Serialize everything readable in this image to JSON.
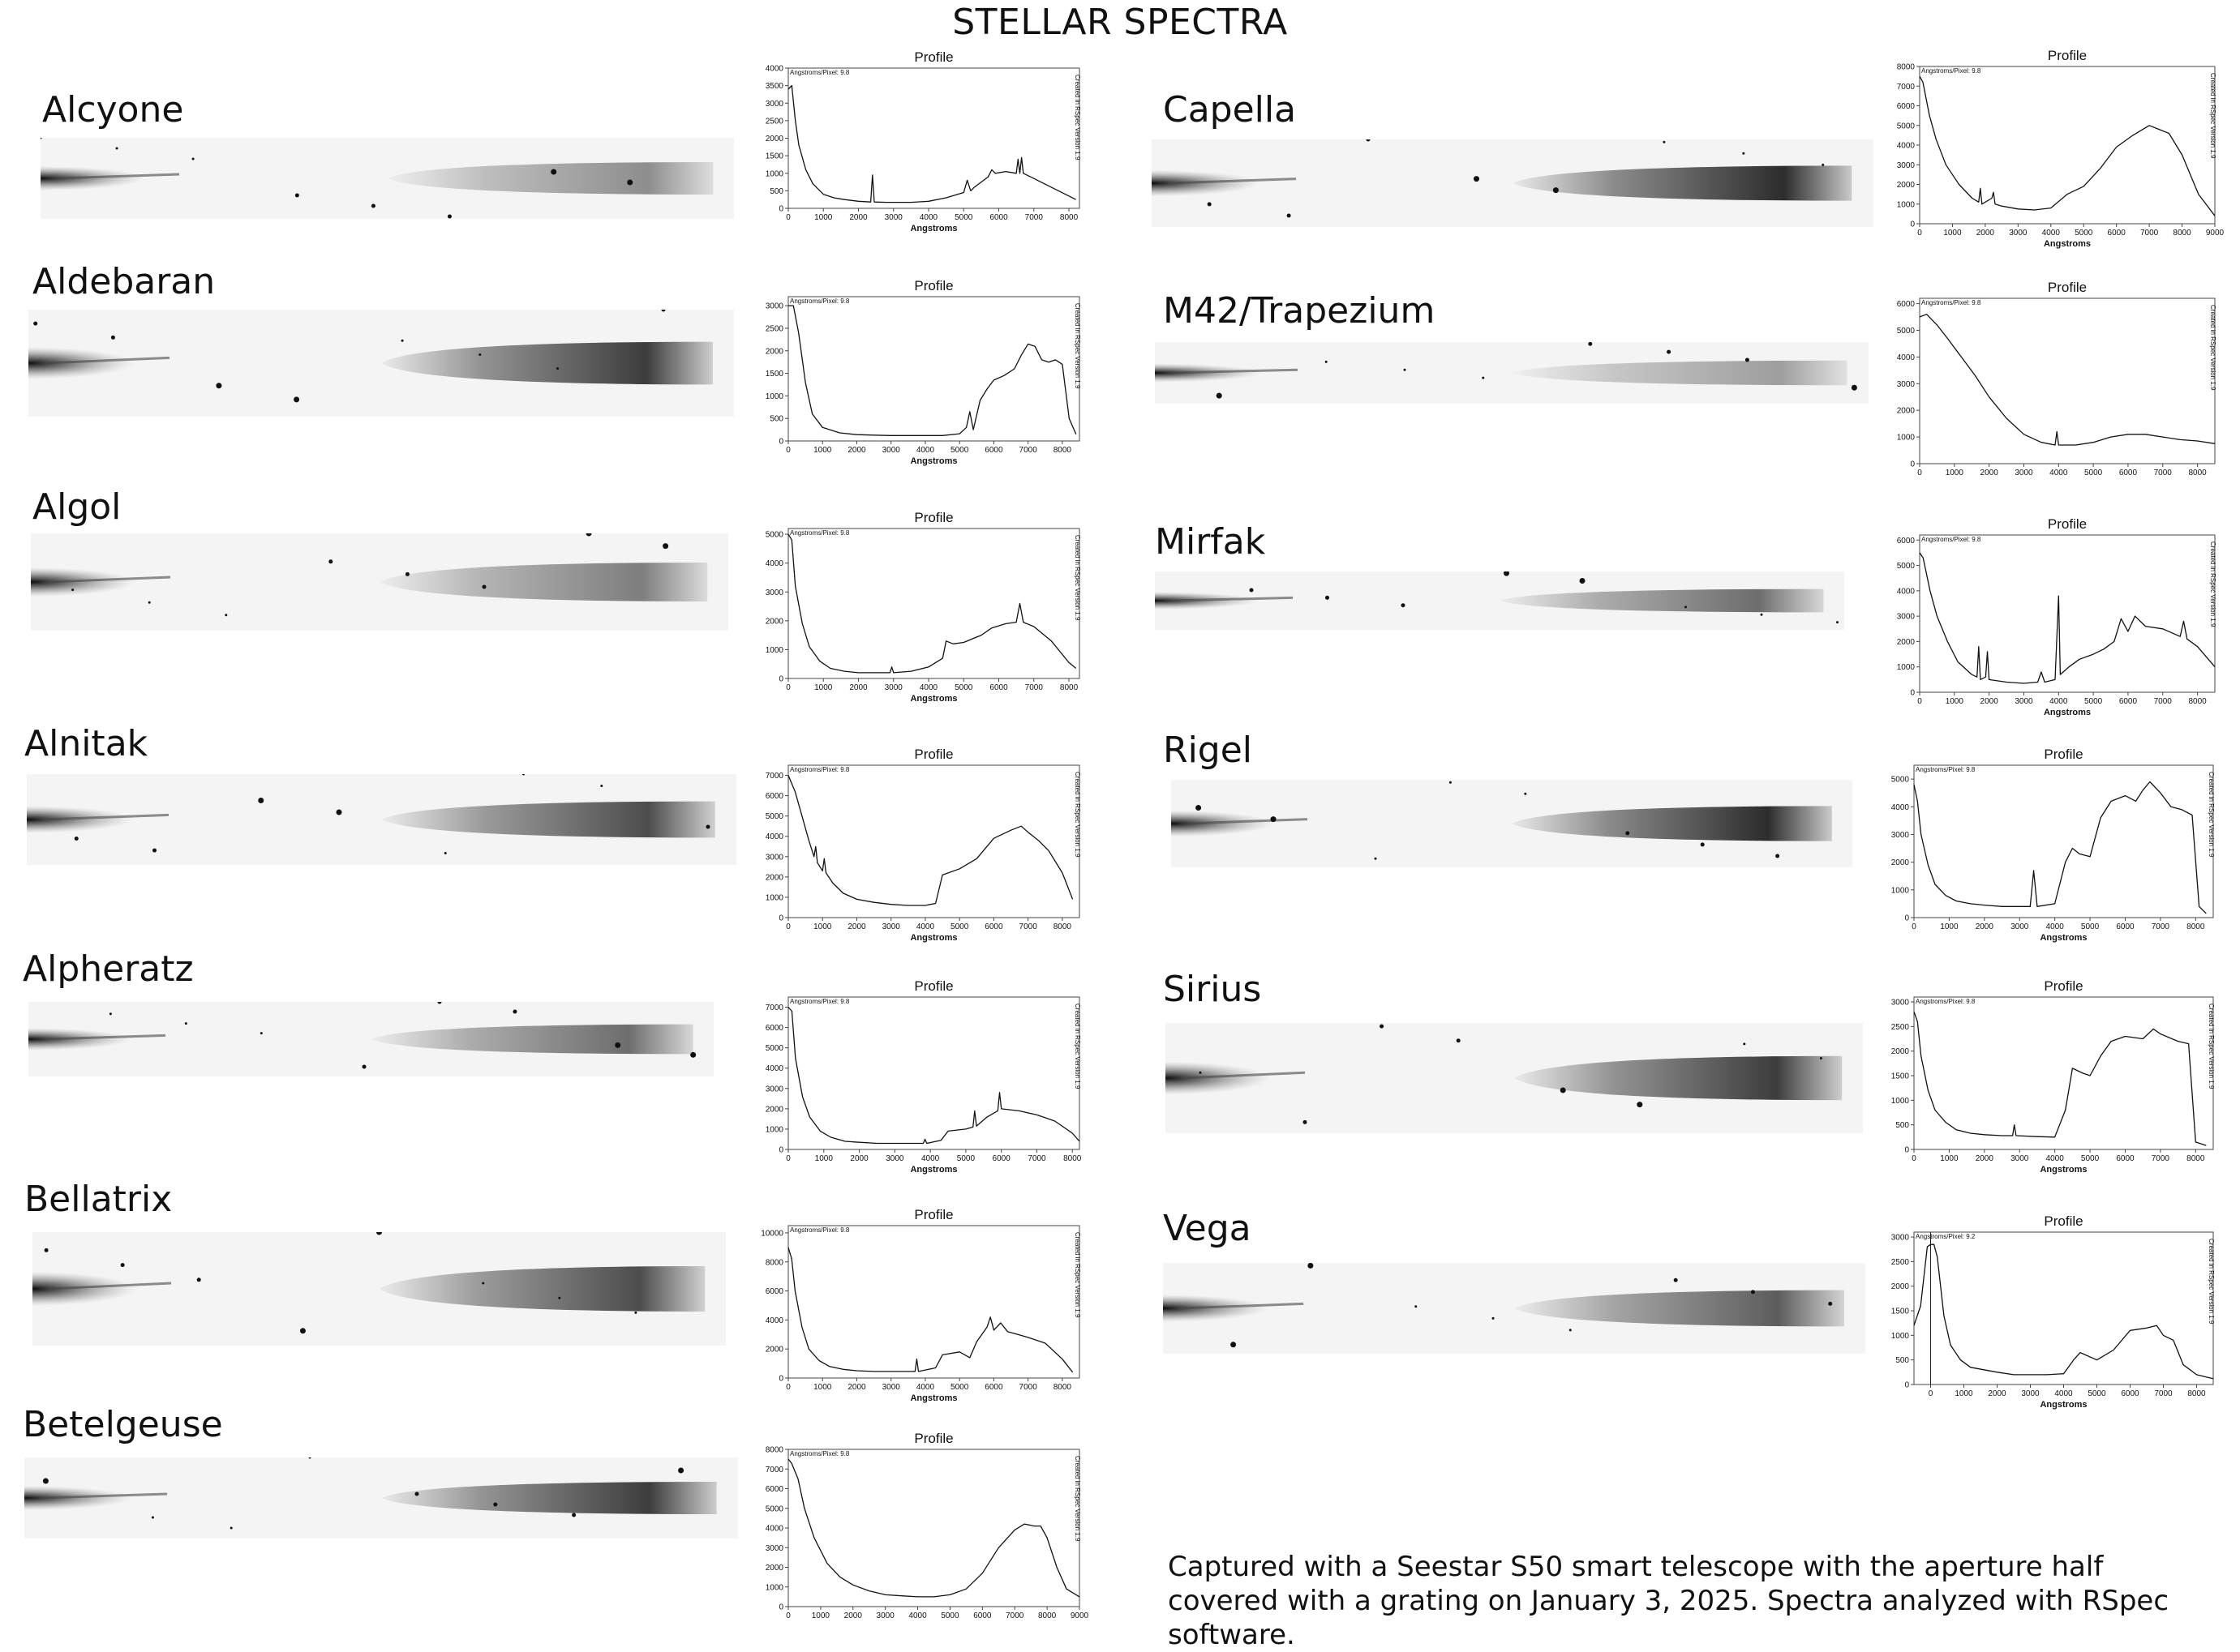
{
  "page": {
    "title": "STELLAR SPECTRA",
    "caption": "Captured with a Seestar S50 smart telescope with the aperture half covered with a grating on January 3, 2025. Spectra analyzed with RSpec software."
  },
  "chart_data": [
    {
      "type": "line",
      "star": "Alcyone",
      "title": "Profile",
      "xlabel": "Angstroms",
      "ylabel": "",
      "header": "Angstroms/Pixel: 9.8",
      "side_note": "Created in RSpec Version 1.9",
      "xlim": [
        0,
        8300
      ],
      "ylim": [
        0,
        4000
      ],
      "xticks": [
        0,
        1000,
        2000,
        3000,
        4000,
        5000,
        6000,
        7000,
        8000
      ],
      "yticks": [
        0,
        500,
        1000,
        1500,
        2000,
        2500,
        3000,
        3500,
        4000
      ],
      "x": [
        0,
        100,
        200,
        300,
        500,
        700,
        1000,
        1300,
        1600,
        2000,
        2350,
        2400,
        2450,
        2800,
        3500,
        4000,
        4500,
        5000,
        5100,
        5200,
        5300,
        5500,
        5700,
        5800,
        5900,
        6200,
        6500,
        6550,
        6600,
        6650,
        6700,
        6800,
        7000,
        7300,
        7600,
        7900,
        8200
      ],
      "y": [
        3400,
        3500,
        2500,
        1800,
        1100,
        700,
        400,
        300,
        250,
        200,
        180,
        950,
        180,
        170,
        170,
        200,
        300,
        450,
        800,
        500,
        600,
        750,
        900,
        1100,
        1000,
        1050,
        1000,
        1400,
        1000,
        1450,
        1000,
        950,
        850,
        700,
        550,
        400,
        250
      ]
    },
    {
      "type": "line",
      "star": "Aldebaran",
      "title": "Profile",
      "xlabel": "Angstroms",
      "ylabel": "",
      "header": "Angstroms/Pixel: 9.8",
      "side_note": "Created in RSpec Version 1.9",
      "xlim": [
        0,
        8500
      ],
      "ylim": [
        0,
        3200
      ],
      "xticks": [
        0,
        1000,
        2000,
        3000,
        4000,
        5000,
        6000,
        7000,
        8000
      ],
      "yticks": [
        0,
        500,
        1000,
        1500,
        2000,
        2500,
        3000
      ],
      "x": [
        0,
        150,
        300,
        500,
        700,
        1000,
        1500,
        2000,
        2500,
        3000,
        3500,
        4000,
        4500,
        5000,
        5200,
        5300,
        5400,
        5600,
        5800,
        6000,
        6300,
        6600,
        6800,
        7000,
        7200,
        7400,
        7600,
        7800,
        8000,
        8200,
        8400
      ],
      "y": [
        3000,
        3000,
        2400,
        1300,
        600,
        300,
        180,
        140,
        130,
        120,
        120,
        120,
        120,
        160,
        300,
        650,
        250,
        900,
        1150,
        1350,
        1450,
        1600,
        1900,
        2150,
        2100,
        1800,
        1750,
        1800,
        1700,
        500,
        150
      ]
    },
    {
      "type": "line",
      "star": "Algol",
      "title": "Profile",
      "xlabel": "Angstroms",
      "ylabel": "",
      "header": "Angstroms/Pixel: 9.8",
      "side_note": "Created in RSpec Version 1.9",
      "xlim": [
        0,
        8300
      ],
      "ylim": [
        0,
        5200
      ],
      "xticks": [
        0,
        1000,
        2000,
        3000,
        4000,
        5000,
        6000,
        7000,
        8000
      ],
      "yticks": [
        0,
        1000,
        2000,
        3000,
        4000,
        5000
      ],
      "x": [
        0,
        100,
        200,
        400,
        600,
        900,
        1200,
        1600,
        2000,
        2500,
        2900,
        2950,
        3000,
        3500,
        4000,
        4400,
        4500,
        4700,
        5000,
        5500,
        5800,
        6200,
        6500,
        6600,
        6700,
        7000,
        7500,
        8000,
        8200
      ],
      "y": [
        5000,
        4800,
        3200,
        1900,
        1100,
        600,
        350,
        250,
        200,
        200,
        200,
        400,
        200,
        250,
        400,
        700,
        1300,
        1200,
        1250,
        1500,
        1750,
        1900,
        1950,
        2600,
        1950,
        1800,
        1300,
        550,
        350
      ]
    },
    {
      "type": "line",
      "star": "Alnitak",
      "title": "Profile",
      "xlabel": "Angstroms",
      "ylabel": "",
      "header": "Angstroms/Pixel: 9.8",
      "side_note": "Created in RSpec Version 1.9",
      "xlim": [
        0,
        8500
      ],
      "ylim": [
        0,
        7500
      ],
      "xticks": [
        0,
        1000,
        2000,
        3000,
        4000,
        5000,
        6000,
        7000,
        8000
      ],
      "yticks": [
        0,
        1000,
        2000,
        3000,
        4000,
        5000,
        6000,
        7000
      ],
      "x": [
        0,
        200,
        400,
        600,
        750,
        800,
        850,
        1000,
        1050,
        1100,
        1300,
        1600,
        2000,
        2500,
        3000,
        3500,
        4000,
        4300,
        4500,
        5000,
        5500,
        6000,
        6500,
        6800,
        7000,
        7300,
        7600,
        8000,
        8300
      ],
      "y": [
        7000,
        6200,
        5000,
        3800,
        3000,
        3500,
        2700,
        2300,
        2900,
        2200,
        1700,
        1200,
        900,
        750,
        650,
        600,
        600,
        700,
        2100,
        2400,
        2900,
        3900,
        4300,
        4500,
        4200,
        3800,
        3300,
        2200,
        900
      ]
    },
    {
      "type": "line",
      "star": "Alpheratz",
      "title": "Profile",
      "xlabel": "Angstroms",
      "ylabel": "",
      "header": "Angstroms/Pixel: 9.8",
      "side_note": "Created in RSpec Version 1.9",
      "xlim": [
        0,
        8200
      ],
      "ylim": [
        0,
        7500
      ],
      "xticks": [
        0,
        1000,
        2000,
        3000,
        4000,
        5000,
        6000,
        7000,
        8000
      ],
      "yticks": [
        0,
        1000,
        2000,
        3000,
        4000,
        5000,
        6000,
        7000
      ],
      "x": [
        0,
        100,
        200,
        400,
        600,
        900,
        1200,
        1600,
        2000,
        2500,
        3000,
        3500,
        3800,
        3850,
        3900,
        4300,
        4500,
        5000,
        5200,
        5250,
        5300,
        5600,
        5900,
        5950,
        6000,
        6500,
        7000,
        7500,
        8000,
        8200
      ],
      "y": [
        7000,
        6800,
        4500,
        2600,
        1600,
        900,
        600,
        400,
        350,
        300,
        300,
        300,
        300,
        500,
        300,
        450,
        900,
        1000,
        1100,
        1900,
        1150,
        1600,
        1900,
        2800,
        2000,
        1900,
        1700,
        1400,
        800,
        400
      ]
    },
    {
      "type": "line",
      "star": "Bellatrix",
      "title": "Profile",
      "xlabel": "Angstroms",
      "ylabel": "",
      "header": "Angstroms/Pixel: 9.8",
      "side_note": "Created in RSpec Version 1.9",
      "xlim": [
        0,
        8500
      ],
      "ylim": [
        0,
        10500
      ],
      "xticks": [
        0,
        1000,
        2000,
        3000,
        4000,
        5000,
        6000,
        7000,
        8000
      ],
      "yticks": [
        0,
        2000,
        4000,
        6000,
        8000,
        10000
      ],
      "x": [
        0,
        100,
        200,
        400,
        600,
        900,
        1200,
        1600,
        2000,
        2500,
        3000,
        3500,
        3700,
        3750,
        3800,
        4300,
        4500,
        5000,
        5300,
        5500,
        5800,
        5900,
        6000,
        6200,
        6400,
        6700,
        7000,
        7500,
        8000,
        8300
      ],
      "y": [
        9000,
        8200,
        6000,
        3500,
        2000,
        1200,
        800,
        600,
        500,
        450,
        450,
        450,
        450,
        1300,
        450,
        700,
        1600,
        1800,
        1400,
        2500,
        3500,
        4200,
        3300,
        3800,
        3200,
        3000,
        2800,
        2400,
        1300,
        400
      ]
    },
    {
      "type": "line",
      "star": "Betelgeuse",
      "title": "Profile",
      "xlabel": "",
      "ylabel": "",
      "header": "Angstroms/Pixel: 9.8",
      "side_note": "Created in RSpec Version 1.9",
      "xlim": [
        0,
        9000
      ],
      "ylim": [
        0,
        8000
      ],
      "xticks": [
        0,
        1000,
        2000,
        3000,
        4000,
        5000,
        6000,
        7000,
        8000,
        9000
      ],
      "yticks": [
        0,
        1000,
        2000,
        3000,
        4000,
        5000,
        6000,
        7000,
        8000
      ],
      "x": [
        0,
        100,
        300,
        500,
        800,
        1200,
        1600,
        2000,
        2500,
        3000,
        3500,
        4000,
        4500,
        5000,
        5500,
        6000,
        6500,
        7000,
        7300,
        7600,
        7800,
        8000,
        8300,
        8600,
        9000
      ],
      "y": [
        7500,
        7300,
        6500,
        5000,
        3500,
        2200,
        1500,
        1100,
        800,
        600,
        550,
        500,
        500,
        600,
        900,
        1700,
        3000,
        3900,
        4200,
        4100,
        4100,
        3500,
        2000,
        900,
        500
      ]
    },
    {
      "type": "line",
      "star": "Capella",
      "title": "Profile",
      "xlabel": "Angstroms",
      "ylabel": "",
      "header": "Angstroms/Pixel: 9.8",
      "side_note": "Created in RSpec Version 1.9",
      "xlim": [
        0,
        9000
      ],
      "ylim": [
        0,
        8000
      ],
      "xticks": [
        0,
        1000,
        2000,
        3000,
        4000,
        5000,
        6000,
        7000,
        8000,
        9000
      ],
      "yticks": [
        0,
        1000,
        2000,
        3000,
        4000,
        5000,
        6000,
        7000,
        8000
      ],
      "x": [
        0,
        100,
        300,
        500,
        800,
        1200,
        1600,
        1800,
        1850,
        1900,
        2200,
        2250,
        2300,
        2500,
        3000,
        3500,
        4000,
        4500,
        5000,
        5500,
        6000,
        6500,
        7000,
        7300,
        7600,
        8000,
        8500,
        9000
      ],
      "y": [
        7500,
        7200,
        5500,
        4300,
        3000,
        2000,
        1300,
        1100,
        1800,
        1000,
        1300,
        1600,
        1000,
        900,
        750,
        700,
        800,
        1500,
        1900,
        2800,
        3900,
        4500,
        5000,
        4800,
        4600,
        3500,
        1500,
        400
      ]
    },
    {
      "type": "line",
      "star": "M42/Trapezium",
      "title": "Profile",
      "xlabel": "",
      "ylabel": "",
      "header": "Angstroms/Pixel: 9.8",
      "side_note": "Created in RSpec Version 1.9",
      "xlim": [
        0,
        8500
      ],
      "ylim": [
        0,
        6200
      ],
      "xticks": [
        0,
        1000,
        2000,
        3000,
        4000,
        5000,
        6000,
        7000,
        8000
      ],
      "yticks": [
        0,
        1000,
        2000,
        3000,
        4000,
        5000,
        6000
      ],
      "x": [
        0,
        200,
        500,
        800,
        1200,
        1600,
        2000,
        2500,
        3000,
        3500,
        3900,
        3950,
        4000,
        4500,
        5000,
        5500,
        6000,
        6500,
        7000,
        7500,
        8000,
        8500
      ],
      "y": [
        5500,
        5600,
        5200,
        4700,
        4000,
        3300,
        2500,
        1700,
        1100,
        800,
        700,
        1200,
        700,
        700,
        800,
        1000,
        1100,
        1100,
        1000,
        900,
        850,
        750
      ]
    },
    {
      "type": "line",
      "star": "Mirfak",
      "title": "Profile",
      "xlabel": "Angstroms",
      "ylabel": "",
      "header": "Angstroms/Pixel: 9.8",
      "side_note": "Created in RSpec Version 1.9",
      "xlim": [
        0,
        8500
      ],
      "ylim": [
        0,
        6200
      ],
      "xticks": [
        0,
        1000,
        2000,
        3000,
        4000,
        5000,
        6000,
        7000,
        8000
      ],
      "yticks": [
        0,
        1000,
        2000,
        3000,
        4000,
        5000,
        6000
      ],
      "x": [
        0,
        100,
        300,
        500,
        800,
        1100,
        1500,
        1650,
        1700,
        1750,
        1900,
        1950,
        2000,
        2500,
        3000,
        3400,
        3500,
        3600,
        3900,
        4000,
        4050,
        4300,
        4600,
        5000,
        5300,
        5600,
        5800,
        6000,
        6200,
        6500,
        7000,
        7500,
        7600,
        7700,
        8000,
        8500
      ],
      "y": [
        5500,
        5300,
        4000,
        3000,
        2000,
        1200,
        700,
        600,
        1800,
        500,
        600,
        1600,
        500,
        400,
        350,
        400,
        800,
        400,
        500,
        3800,
        700,
        1000,
        1300,
        1500,
        1700,
        2000,
        2900,
        2400,
        3000,
        2600,
        2500,
        2200,
        2800,
        2100,
        1800,
        1000
      ]
    },
    {
      "type": "line",
      "star": "Rigel",
      "title": "Profile",
      "xlabel": "Angstroms",
      "ylabel": "",
      "header": "Angstroms/Pixel: 9.8",
      "side_note": "Created in RSpec Version 1.9",
      "xlim": [
        0,
        8500
      ],
      "ylim": [
        0,
        5500
      ],
      "xticks": [
        0,
        1000,
        2000,
        3000,
        4000,
        5000,
        6000,
        7000,
        8000
      ],
      "yticks": [
        0,
        1000,
        2000,
        3000,
        4000,
        5000
      ],
      "x": [
        0,
        100,
        200,
        400,
        600,
        900,
        1200,
        1600,
        2000,
        2500,
        3000,
        3300,
        3400,
        3500,
        4000,
        4300,
        4500,
        4700,
        5000,
        5300,
        5600,
        6000,
        6300,
        6500,
        6700,
        7000,
        7300,
        7600,
        7900,
        8100,
        8300
      ],
      "y": [
        4800,
        4200,
        3000,
        1900,
        1200,
        800,
        600,
        500,
        450,
        400,
        400,
        400,
        1700,
        400,
        500,
        2000,
        2500,
        2300,
        2200,
        3600,
        4200,
        4400,
        4200,
        4600,
        4900,
        4500,
        4000,
        3900,
        3700,
        400,
        150
      ]
    },
    {
      "type": "line",
      "star": "Sirius",
      "title": "Profile",
      "xlabel": "Angstroms",
      "ylabel": "",
      "header": "Angstroms/Pixel: 9.8",
      "side_note": "Created in RSpec Version 1.9",
      "xlim": [
        0,
        8500
      ],
      "ylim": [
        0,
        3100
      ],
      "xticks": [
        0,
        1000,
        2000,
        3000,
        4000,
        5000,
        6000,
        7000,
        8000
      ],
      "yticks": [
        0,
        500,
        1000,
        1500,
        2000,
        2500,
        3000
      ],
      "x": [
        0,
        100,
        200,
        400,
        600,
        900,
        1200,
        1600,
        2000,
        2500,
        2800,
        2850,
        2900,
        3500,
        4000,
        4300,
        4500,
        4800,
        5000,
        5300,
        5600,
        6000,
        6500,
        6800,
        7000,
        7500,
        7800,
        8000,
        8300
      ],
      "y": [
        2800,
        2600,
        1900,
        1200,
        800,
        550,
        400,
        330,
        300,
        280,
        280,
        500,
        280,
        260,
        250,
        800,
        1650,
        1550,
        1500,
        1900,
        2200,
        2300,
        2250,
        2450,
        2350,
        2200,
        2150,
        150,
        80
      ]
    },
    {
      "type": "line",
      "star": "Vega",
      "title": "Profile",
      "xlabel": "Angstroms",
      "ylabel": "",
      "header": "Angstroms/Pixel: 9.2",
      "side_note": "Created in RSpec Version 1.9",
      "xlim": [
        -500,
        8500
      ],
      "ylim": [
        0,
        3100
      ],
      "xticks": [
        0,
        1000,
        2000,
        3000,
        4000,
        5000,
        6000,
        7000,
        8000
      ],
      "yticks": [
        0,
        500,
        1000,
        1500,
        2000,
        2500,
        3000
      ],
      "x": [
        -500,
        -300,
        -200,
        -100,
        0,
        100,
        200,
        300,
        400,
        600,
        900,
        1200,
        1600,
        2000,
        2500,
        3000,
        3500,
        4000,
        4300,
        4500,
        5000,
        5500,
        6000,
        6500,
        6800,
        7000,
        7300,
        7600,
        8000,
        8300,
        8500
      ],
      "y": [
        1200,
        1600,
        2200,
        2800,
        2850,
        2850,
        2600,
        2000,
        1400,
        800,
        500,
        350,
        300,
        250,
        200,
        200,
        200,
        220,
        500,
        650,
        500,
        700,
        1100,
        1150,
        1200,
        1000,
        900,
        400,
        200,
        150,
        120
      ]
    }
  ]
}
